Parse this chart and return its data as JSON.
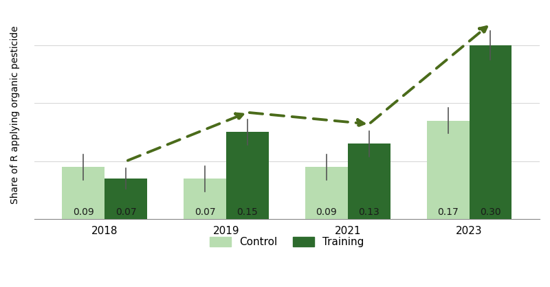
{
  "years": [
    "2018",
    "2019",
    "2021",
    "2023"
  ],
  "control_values": [
    0.09,
    0.07,
    0.09,
    0.17
  ],
  "training_values": [
    0.07,
    0.15,
    0.13,
    0.3
  ],
  "control_errors": [
    0.022,
    0.022,
    0.022,
    0.022
  ],
  "training_errors": [
    0.018,
    0.022,
    0.022,
    0.025
  ],
  "control_color": "#b8ddb0",
  "training_color": "#2d6b2d",
  "ylabel": "Share of R applying organic pesticide",
  "ylim": [
    0,
    0.36
  ],
  "bar_width": 0.35,
  "background_color": "#ffffff",
  "legend_labels": [
    "Control",
    "Training"
  ],
  "dashed_line_color": "#4a6b1a",
  "x_positions": [
    0,
    1,
    2,
    3
  ],
  "yticks": [
    0.0,
    0.1,
    0.2,
    0.3
  ],
  "grid_color": "#d8d8d8",
  "label_fontsize": 10,
  "tick_fontsize": 11,
  "ylabel_fontsize": 10,
  "legend_fontsize": 11
}
